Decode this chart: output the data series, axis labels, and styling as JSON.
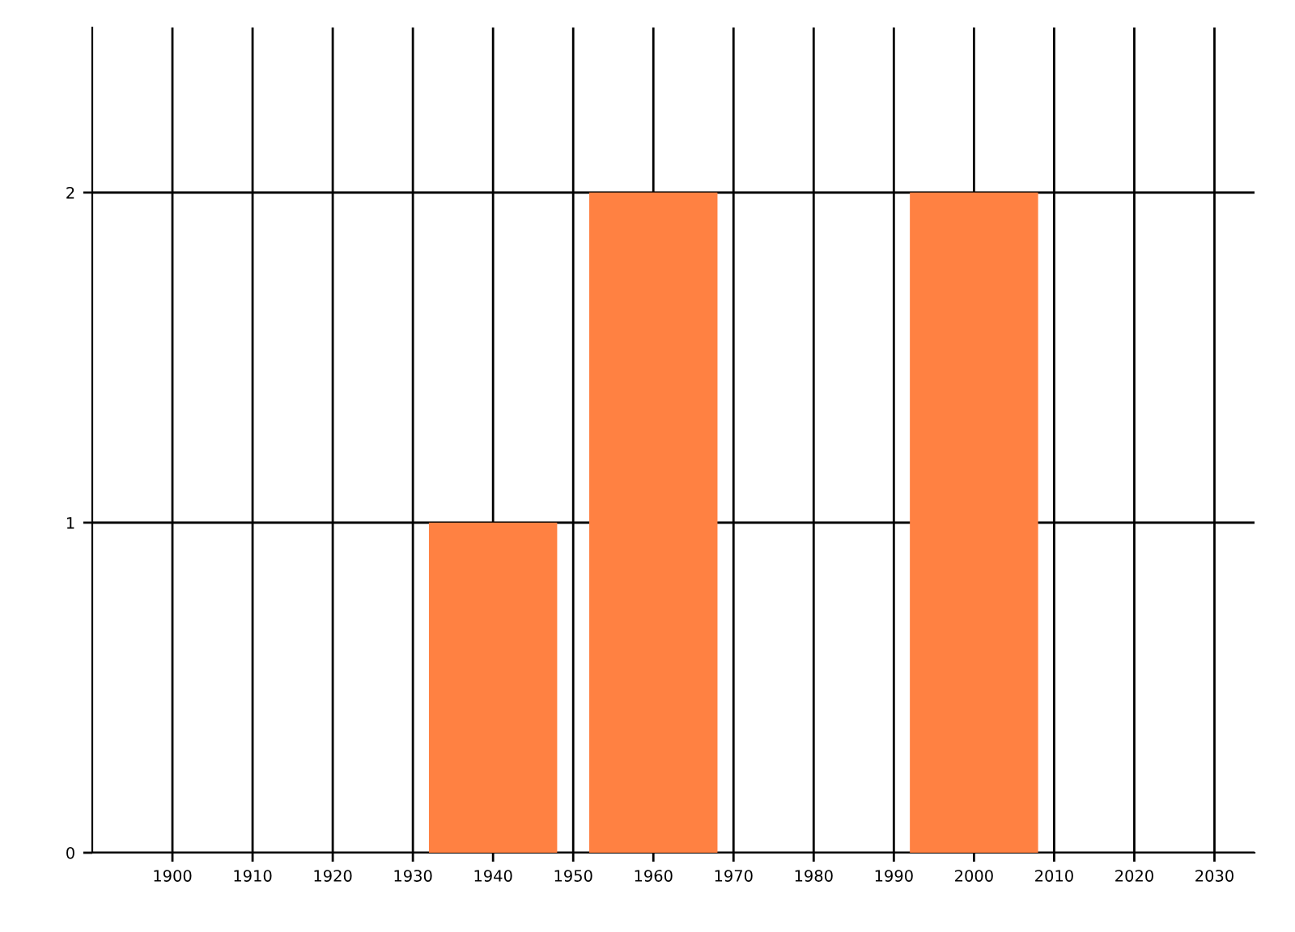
{
  "chart_data": {
    "type": "bar",
    "x": [
      1940,
      1960,
      2000
    ],
    "series": [
      {
        "color": "#ff8142",
        "values": [
          1,
          2,
          2
        ]
      }
    ],
    "xlim": [
      1890,
      2035
    ],
    "xticks": [
      1900,
      1910,
      1920,
      1930,
      1940,
      1950,
      1960,
      1970,
      1980,
      1990,
      2000,
      2010,
      2020,
      2030
    ],
    "ylim": [
      0,
      2.5
    ],
    "yticks": [
      0,
      1,
      2
    ],
    "grid": true
  }
}
